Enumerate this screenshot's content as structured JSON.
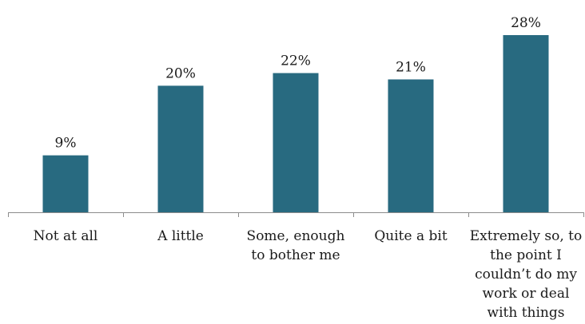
{
  "chart_data": {
    "type": "bar",
    "categories": [
      "Not at all",
      "A little",
      "Some, enough to bother me",
      "Quite a bit",
      "Extremely so, to the point I couldn’t do my work or deal with things"
    ],
    "values": [
      9,
      20,
      22,
      21,
      28
    ],
    "value_labels": [
      "9%",
      "20%",
      "22%",
      "21%",
      "28%"
    ],
    "title": "",
    "xlabel": "",
    "ylabel": "",
    "ylim": [
      0,
      28
    ],
    "grid": false,
    "legend": "none",
    "bar_color": "#286a80"
  }
}
